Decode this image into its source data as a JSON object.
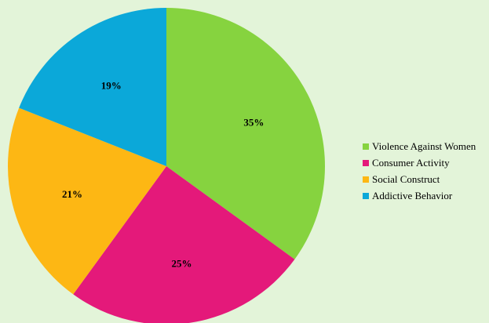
{
  "chart_data": {
    "type": "pie",
    "categories": [
      "Violence Against Women",
      "Consumer Activity",
      "Social Construct",
      "Addictive Behavior"
    ],
    "values": [
      35,
      25,
      21,
      19
    ],
    "labels": [
      "35%",
      "25%",
      "21%",
      "19%"
    ],
    "colors": [
      "#86d33f",
      "#e4197a",
      "#fdb714",
      "#0ba8d9"
    ],
    "start_angle_deg": 0,
    "direction": "clockwise",
    "legend_position": "right"
  },
  "legend": {
    "items": [
      {
        "label": "Violence Against Women",
        "color": "#86d33f"
      },
      {
        "label": "Consumer Activity",
        "color": "#e4197a"
      },
      {
        "label": "Social Construct",
        "color": "#fdb714"
      },
      {
        "label": "Addictive Behavior",
        "color": "#0ba8d9"
      }
    ]
  }
}
